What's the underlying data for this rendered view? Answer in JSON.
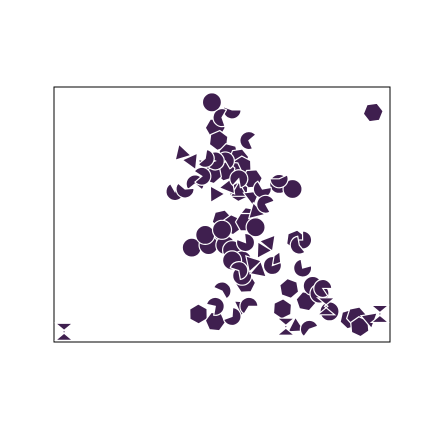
{
  "chart_data": {
    "type": "scatter",
    "title": "",
    "xlabel": "",
    "ylabel": "",
    "xlim": [
      0,
      100
    ],
    "ylim": [
      0,
      100
    ],
    "grid": false,
    "legend": "none",
    "colors": {
      "marker": "#3f1f4f",
      "frame": "#000000",
      "background": "#ffffff"
    },
    "series": [
      {
        "marker": "hexagon",
        "points": [
          [
            48,
            84
          ],
          [
            49,
            79
          ],
          [
            52,
            74
          ],
          [
            55,
            72
          ],
          [
            56,
            69
          ],
          [
            53,
            67
          ],
          [
            51,
            67
          ],
          [
            47,
            66
          ],
          [
            59,
            64
          ],
          [
            55,
            59
          ],
          [
            58,
            49
          ],
          [
            50,
            48
          ],
          [
            53,
            46
          ],
          [
            57,
            47
          ],
          [
            72,
            40
          ],
          [
            50,
            40
          ],
          [
            95,
            90
          ],
          [
            43,
            11
          ],
          [
            48,
            8
          ],
          [
            88,
            9
          ],
          [
            70,
            21
          ],
          [
            57,
            23
          ],
          [
            68,
            13
          ],
          [
            75,
            16
          ],
          [
            90,
            10
          ],
          [
            91,
            6
          ]
        ]
      },
      {
        "marker": "circle",
        "points": [
          [
            47,
            94
          ],
          [
            67,
            62
          ],
          [
            71,
            60
          ],
          [
            60,
            45
          ],
          [
            41,
            37
          ],
          [
            46,
            38
          ],
          [
            51,
            38
          ],
          [
            53,
            36
          ],
          [
            56,
            32
          ],
          [
            56,
            26
          ],
          [
            53,
            32
          ],
          [
            77,
            22
          ],
          [
            82,
            12
          ],
          [
            79,
            19
          ],
          [
            45,
            42
          ],
          [
            50,
            44
          ]
        ]
      },
      {
        "marker": "triangle",
        "points": [
          [
            55,
            59
          ],
          [
            59,
            57
          ],
          [
            60,
            51
          ],
          [
            64,
            39
          ],
          [
            62,
            36
          ],
          [
            66,
            32
          ],
          [
            59,
            31
          ],
          [
            61,
            28
          ],
          [
            56,
            14
          ],
          [
            72,
            6
          ],
          [
            94,
            9
          ],
          [
            38,
            74
          ],
          [
            41,
            71
          ],
          [
            48,
            58
          ],
          [
            52,
            61
          ],
          [
            45,
            69
          ]
        ]
      },
      {
        "marker": "wedge",
        "points": [
          [
            53,
            91
          ],
          [
            50,
            88
          ],
          [
            42,
            62
          ],
          [
            44,
            65
          ],
          [
            36,
            59
          ],
          [
            39,
            60
          ],
          [
            58,
            79
          ],
          [
            51,
            71
          ],
          [
            48,
            71
          ],
          [
            45,
            72
          ],
          [
            62,
            60
          ],
          [
            63,
            54
          ],
          [
            55,
            64
          ],
          [
            50,
            20
          ],
          [
            53,
            10
          ],
          [
            74,
            29
          ],
          [
            80,
            21
          ],
          [
            76,
            5
          ],
          [
            55,
            28
          ],
          [
            74,
            40
          ],
          [
            65,
            30
          ],
          [
            73,
            38
          ],
          [
            58,
            14
          ],
          [
            48,
            14
          ],
          [
            57,
            39
          ],
          [
            67,
            64
          ]
        ]
      },
      {
        "marker": "edge-glyph",
        "points": [
          [
            3,
            4
          ],
          [
            81,
            14
          ],
          [
            69,
            6
          ],
          [
            97,
            11
          ]
        ]
      }
    ]
  }
}
